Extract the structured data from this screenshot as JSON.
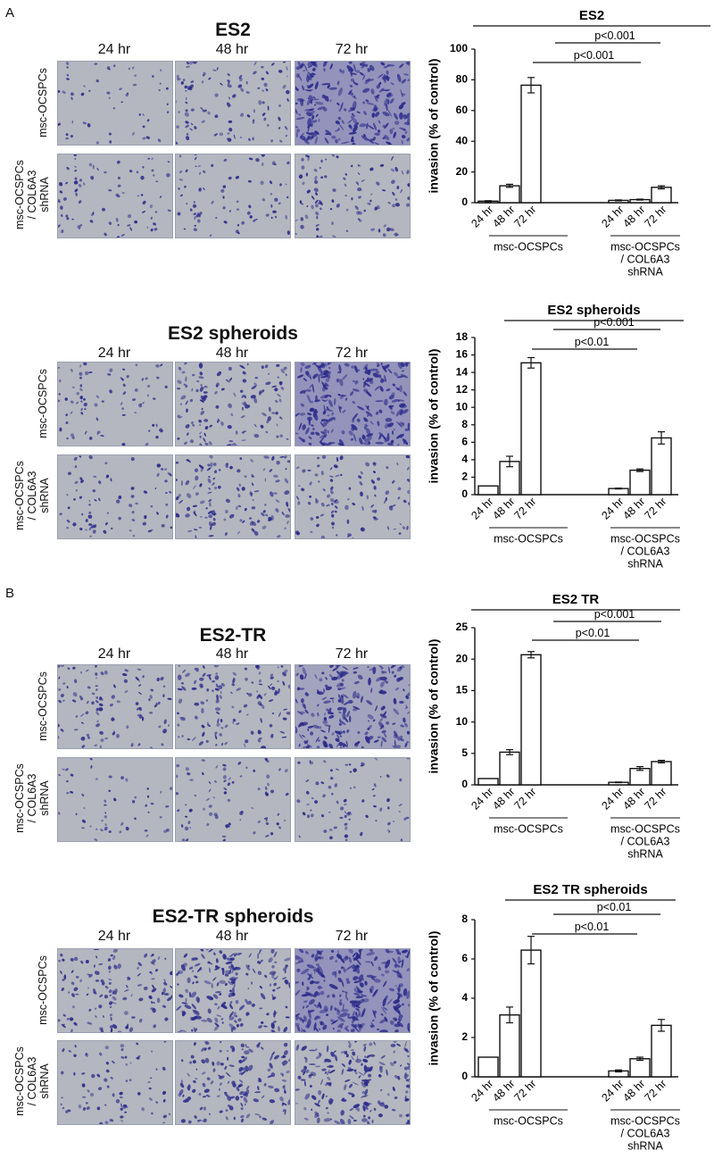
{
  "panel_letters": [
    "A",
    "B"
  ],
  "time_labels": [
    "24 hr",
    "48 hr",
    "72 hr"
  ],
  "row_labels": {
    "top": "msc-OCSPCs",
    "bottom": [
      "msc-OCSPCs",
      "/ COL6A3",
      "shRNA"
    ]
  },
  "image_panels": [
    {
      "title": "ES2",
      "density": [
        [
          2,
          4,
          9
        ],
        [
          3,
          3,
          4
        ]
      ]
    },
    {
      "title": "ES2 spheroids",
      "density": [
        [
          3,
          5,
          9
        ],
        [
          3,
          5,
          4
        ]
      ]
    },
    {
      "title": "ES2-TR",
      "density": [
        [
          4,
          5,
          8
        ],
        [
          2,
          3,
          3
        ]
      ]
    },
    {
      "title": "ES2-TR spheroids",
      "density": [
        [
          5,
          7,
          10
        ],
        [
          3,
          6,
          7
        ]
      ]
    }
  ],
  "image_colors": {
    "background": "#b4b7bf",
    "stain": "#2a2a8a"
  },
  "chart_data": [
    {
      "type": "bar",
      "title": "ES2",
      "ylabel": "invasion (% of control)",
      "ylim": [
        0,
        100
      ],
      "yticks": [
        0,
        20,
        40,
        60,
        80,
        100
      ],
      "categories": [
        "24 hr",
        "48 hr",
        "72 hr"
      ],
      "groups": [
        {
          "name": "msc-OCSPCs",
          "values": [
            1,
            11,
            76.5
          ],
          "errors": [
            0.3,
            1,
            5
          ]
        },
        {
          "name": "msc-OCSPCs / COL6A3 shRNA",
          "values": [
            1.5,
            2,
            10
          ],
          "errors": [
            0.3,
            0.3,
            1
          ]
        }
      ],
      "annotations": [
        "p<0.001",
        "p<0.001"
      ]
    },
    {
      "type": "bar",
      "title": "ES2 spheroids",
      "ylabel": "invasion (% of control)",
      "ylim": [
        0,
        18
      ],
      "yticks": [
        0,
        2,
        4,
        6,
        8,
        10,
        12,
        14,
        16,
        18
      ],
      "categories": [
        "24 hr",
        "48 hr",
        "72 hr"
      ],
      "groups": [
        {
          "name": "msc-OCSPCs",
          "values": [
            1,
            3.8,
            15.1
          ],
          "errors": [
            0,
            0.6,
            0.6
          ]
        },
        {
          "name": "msc-OCSPCs / COL6A3 shRNA",
          "values": [
            0.7,
            2.8,
            6.5
          ],
          "errors": [
            0.05,
            0.15,
            0.7
          ]
        }
      ],
      "annotations": [
        "p<0.001",
        "p<0.01"
      ]
    },
    {
      "type": "bar",
      "title": "ES2 TR",
      "ylabel": "invasion (% of control)",
      "ylim": [
        0,
        25
      ],
      "yticks": [
        0,
        5,
        10,
        15,
        20,
        25
      ],
      "categories": [
        "24 hr",
        "48 hr",
        "72 hr"
      ],
      "groups": [
        {
          "name": "msc-OCSPCs",
          "values": [
            1,
            5.2,
            20.7
          ],
          "errors": [
            0,
            0.4,
            0.5
          ]
        },
        {
          "name": "msc-OCSPCs / COL6A3 shRNA",
          "values": [
            0.4,
            2.6,
            3.7
          ],
          "errors": [
            0.05,
            0.3,
            0.2
          ]
        }
      ],
      "annotations": [
        "p<0.001",
        "p<0.01"
      ]
    },
    {
      "type": "bar",
      "title": "ES2 TR spheroids",
      "ylabel": "invasion (% of control)",
      "ylim": [
        0,
        8
      ],
      "yticks": [
        0,
        2,
        4,
        6,
        8
      ],
      "categories": [
        "24 hr",
        "48 hr",
        "72 hr"
      ],
      "groups": [
        {
          "name": "msc-OCSPCs",
          "values": [
            1,
            3.15,
            6.45
          ],
          "errors": [
            0,
            0.4,
            0.7
          ]
        },
        {
          "name": "msc-OCSPCs / COL6A3 shRNA",
          "values": [
            0.3,
            0.92,
            2.62
          ],
          "errors": [
            0.05,
            0.08,
            0.3
          ]
        }
      ],
      "annotations": [
        "p<0.01",
        "p<0.01"
      ]
    }
  ]
}
